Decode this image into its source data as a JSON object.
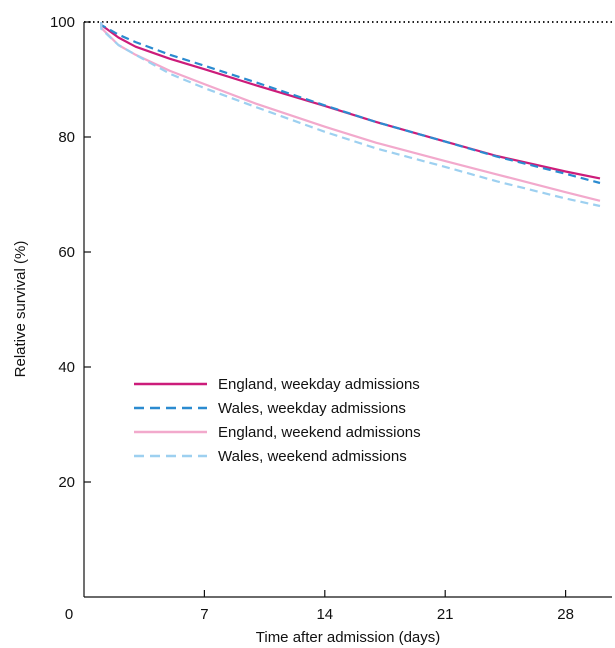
{
  "chart_data": {
    "type": "line",
    "title": "",
    "xlabel": "Time after admission (days)",
    "ylabel": "Relative survival (%)",
    "xlim": [
      0,
      30
    ],
    "ylim": [
      0,
      100
    ],
    "xticks": [
      0,
      7,
      14,
      21,
      28
    ],
    "yticks": [
      20,
      40,
      60,
      80,
      100
    ],
    "reference_line": {
      "y": 100,
      "style": "dotted",
      "color": "#222222"
    },
    "grid": false,
    "legend": {
      "placement": "center-left"
    },
    "x": [
      1,
      2,
      3,
      5,
      7,
      10,
      14,
      17,
      21,
      24,
      28,
      30
    ],
    "series": [
      {
        "name": "England, weekday admissions",
        "color": "#cc1c7a",
        "dash": "solid",
        "values": [
          99.5,
          97.3,
          95.7,
          93.6,
          91.8,
          89.0,
          85.4,
          82.6,
          79.2,
          76.7,
          74.0,
          72.8
        ]
      },
      {
        "name": "Wales, weekday admissions",
        "color": "#2b8bd0",
        "dash": "dashed",
        "values": [
          99.5,
          97.8,
          96.5,
          94.3,
          92.4,
          89.5,
          85.5,
          82.6,
          79.2,
          76.6,
          73.6,
          72.0
        ]
      },
      {
        "name": "England, weekend admissions",
        "color": "#f2a9cc",
        "dash": "solid",
        "values": [
          99.0,
          96.0,
          94.3,
          91.5,
          89.2,
          85.8,
          81.8,
          79.0,
          75.8,
          73.5,
          70.4,
          68.9
        ]
      },
      {
        "name": "Wales, weekend admissions",
        "color": "#9dd0f0",
        "dash": "dashed",
        "values": [
          98.8,
          96.0,
          94.3,
          91.0,
          88.5,
          85.2,
          80.9,
          78.0,
          74.8,
          72.3,
          69.3,
          68.0
        ]
      }
    ]
  }
}
